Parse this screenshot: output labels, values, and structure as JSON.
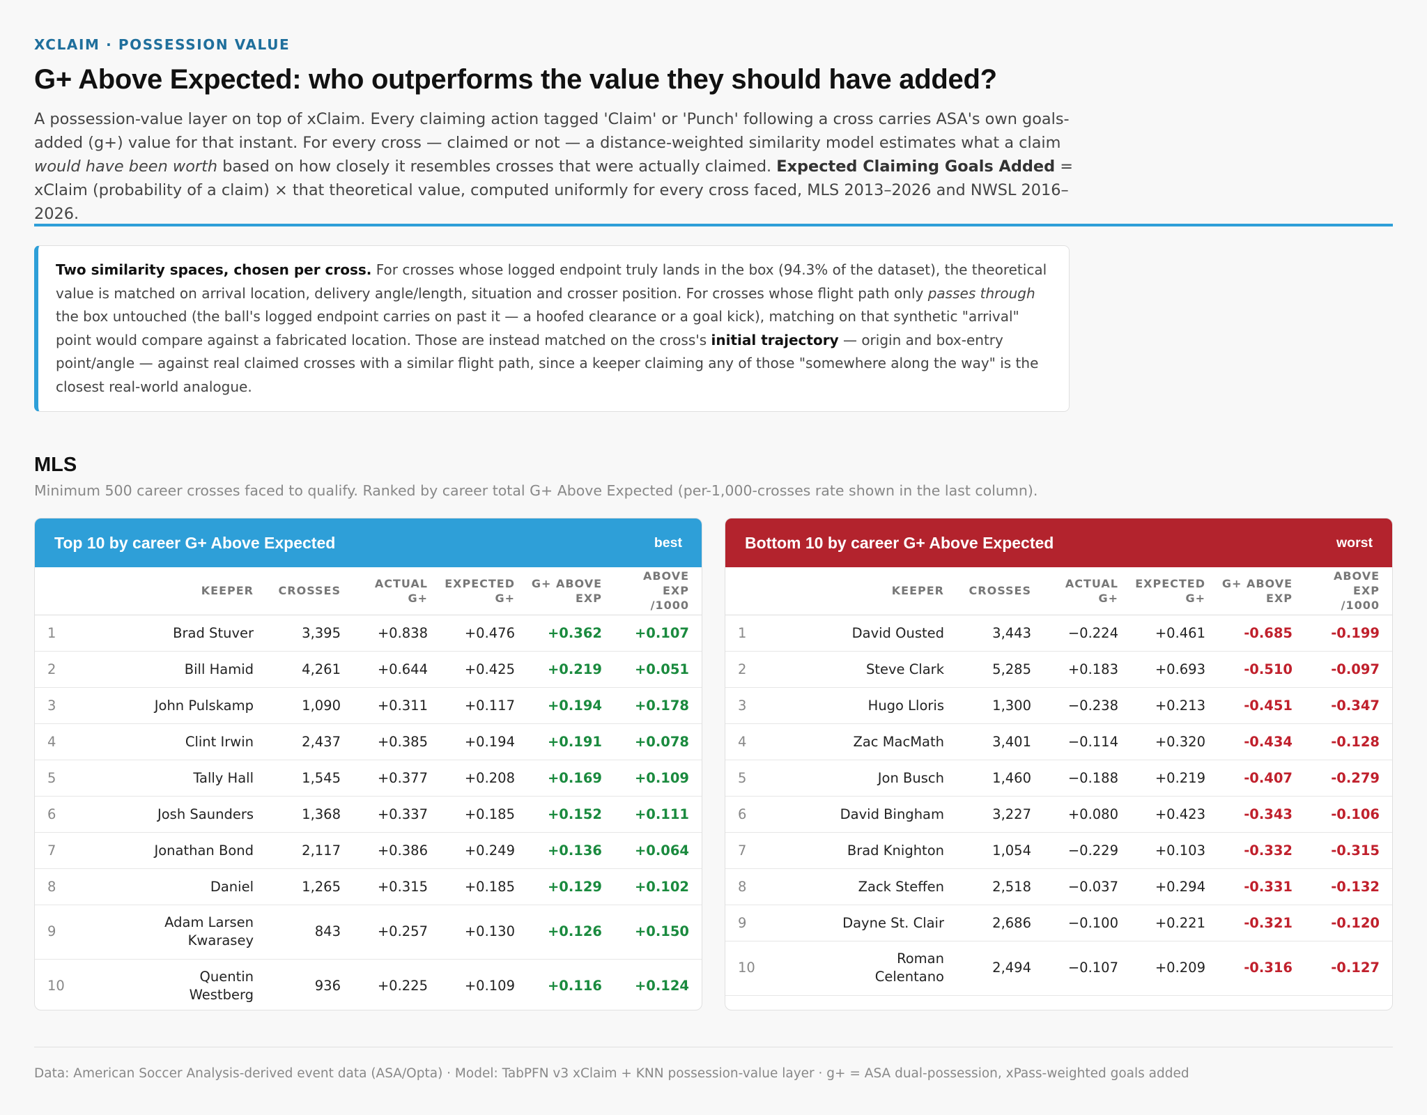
{
  "header": {
    "eyebrow": "XCLAIM · POSSESSION VALUE",
    "title": "G+ Above Expected: who outperforms the value they should have added?",
    "intro_p1": "A possession-value layer on top of xClaim. Every claiming action tagged 'Claim' or 'Punch' following a cross carries ASA's own goals-added (g+) value for that instant. For every cross — claimed or not — a distance-weighted similarity model estimates what a claim ",
    "intro_em": "would have been worth",
    "intro_p2": " based on how closely it resembles crosses that were actually claimed. ",
    "intro_bold": "Expected Claiming Goals Added",
    "intro_p3": " = xClaim (probability of a claim) × that theoretical value, computed uniformly for every cross faced, MLS 2013–2026 and NWSL 2016–2026."
  },
  "note": {
    "lead": "Two similarity spaces, chosen per cross.",
    "t1": " For crosses whose logged endpoint truly lands in the box (94.3% of the dataset), the theoretical value is matched on arrival location, delivery angle/length, situation and crosser position. For crosses whose flight path only ",
    "em": "passes through",
    "t2": " the box untouched (the ball's logged endpoint carries on past it — a hoofed clearance or a goal kick), matching on that synthetic \"arrival\" point would compare against a fabricated location. Those are instead matched on the cross's ",
    "bold": "initial trajectory",
    "t3": " — origin and box-entry point/angle — against real claimed crosses with a similar flight path, since a keeper claiming any of those \"somewhere along the way\" is the closest real-world analogue."
  },
  "section": {
    "title": "MLS",
    "subtitle": "Minimum 500 career crosses faced to qualify. Ranked by career total G+ Above Expected (per-1,000-crosses rate shown in the last column)."
  },
  "columns": {
    "keeper": "KEEPER",
    "crosses": "CROSSES",
    "actual_1": "ACTUAL",
    "actual_2": "G+",
    "expected_1": "EXPECTED",
    "expected_2": "G+",
    "above_1": "G+ ABOVE",
    "above_2": "EXP",
    "rate_1": "ABOVE EXP",
    "rate_2": "/1000"
  },
  "top": {
    "title": "Top 10 by career G+ Above Expected",
    "tag": "best",
    "accent": "#2e9fd8",
    "rows": [
      {
        "rank": "1",
        "k1": "Brad Stuver",
        "k2": "",
        "crosses": "3,395",
        "actual": "+0.838",
        "expected": "+0.476",
        "above": "+0.362",
        "rate": "+0.107"
      },
      {
        "rank": "2",
        "k1": "Bill Hamid",
        "k2": "",
        "crosses": "4,261",
        "actual": "+0.644",
        "expected": "+0.425",
        "above": "+0.219",
        "rate": "+0.051"
      },
      {
        "rank": "3",
        "k1": "John Pulskamp",
        "k2": "",
        "crosses": "1,090",
        "actual": "+0.311",
        "expected": "+0.117",
        "above": "+0.194",
        "rate": "+0.178"
      },
      {
        "rank": "4",
        "k1": "Clint Irwin",
        "k2": "",
        "crosses": "2,437",
        "actual": "+0.385",
        "expected": "+0.194",
        "above": "+0.191",
        "rate": "+0.078"
      },
      {
        "rank": "5",
        "k1": "Tally Hall",
        "k2": "",
        "crosses": "1,545",
        "actual": "+0.377",
        "expected": "+0.208",
        "above": "+0.169",
        "rate": "+0.109"
      },
      {
        "rank": "6",
        "k1": "Josh Saunders",
        "k2": "",
        "crosses": "1,368",
        "actual": "+0.337",
        "expected": "+0.185",
        "above": "+0.152",
        "rate": "+0.111"
      },
      {
        "rank": "7",
        "k1": "Jonathan Bond",
        "k2": "",
        "crosses": "2,117",
        "actual": "+0.386",
        "expected": "+0.249",
        "above": "+0.136",
        "rate": "+0.064"
      },
      {
        "rank": "8",
        "k1": "Daniel",
        "k2": "",
        "crosses": "1,265",
        "actual": "+0.315",
        "expected": "+0.185",
        "above": "+0.129",
        "rate": "+0.102"
      },
      {
        "rank": "9",
        "k1": "Adam Larsen",
        "k2": "Kwarasey",
        "crosses": "843",
        "actual": "+0.257",
        "expected": "+0.130",
        "above": "+0.126",
        "rate": "+0.150"
      },
      {
        "rank": "10",
        "k1": "Quentin",
        "k2": "Westberg",
        "crosses": "936",
        "actual": "+0.225",
        "expected": "+0.109",
        "above": "+0.116",
        "rate": "+0.124"
      }
    ]
  },
  "bottom": {
    "title": "Bottom 10 by career G+ Above Expected",
    "tag": "worst",
    "accent": "#b3232d",
    "rows": [
      {
        "rank": "1",
        "k1": "David Ousted",
        "k2": "",
        "crosses": "3,443",
        "actual": "−0.224",
        "expected": "+0.461",
        "above": "-0.685",
        "rate": "-0.199"
      },
      {
        "rank": "2",
        "k1": "Steve Clark",
        "k2": "",
        "crosses": "5,285",
        "actual": "+0.183",
        "expected": "+0.693",
        "above": "-0.510",
        "rate": "-0.097"
      },
      {
        "rank": "3",
        "k1": "Hugo Lloris",
        "k2": "",
        "crosses": "1,300",
        "actual": "−0.238",
        "expected": "+0.213",
        "above": "-0.451",
        "rate": "-0.347"
      },
      {
        "rank": "4",
        "k1": "Zac MacMath",
        "k2": "",
        "crosses": "3,401",
        "actual": "−0.114",
        "expected": "+0.320",
        "above": "-0.434",
        "rate": "-0.128"
      },
      {
        "rank": "5",
        "k1": "Jon Busch",
        "k2": "",
        "crosses": "1,460",
        "actual": "−0.188",
        "expected": "+0.219",
        "above": "-0.407",
        "rate": "-0.279"
      },
      {
        "rank": "6",
        "k1": "David Bingham",
        "k2": "",
        "crosses": "3,227",
        "actual": "+0.080",
        "expected": "+0.423",
        "above": "-0.343",
        "rate": "-0.106"
      },
      {
        "rank": "7",
        "k1": "Brad Knighton",
        "k2": "",
        "crosses": "1,054",
        "actual": "−0.229",
        "expected": "+0.103",
        "above": "-0.332",
        "rate": "-0.315"
      },
      {
        "rank": "8",
        "k1": "Zack Steffen",
        "k2": "",
        "crosses": "2,518",
        "actual": "−0.037",
        "expected": "+0.294",
        "above": "-0.331",
        "rate": "-0.132"
      },
      {
        "rank": "9",
        "k1": "Dayne St. Clair",
        "k2": "",
        "crosses": "2,686",
        "actual": "−0.100",
        "expected": "+0.221",
        "above": "-0.321",
        "rate": "-0.120"
      },
      {
        "rank": "10",
        "k1": "Roman",
        "k2": "Celentano",
        "crosses": "2,494",
        "actual": "−0.107",
        "expected": "+0.209",
        "above": "-0.316",
        "rate": "-0.127"
      }
    ]
  },
  "colors": {
    "positive": "#1a8a3e",
    "negative": "#c0202c",
    "rule": "#2e9fd8"
  },
  "footer": "Data: American Soccer Analysis-derived event data (ASA/Opta) · Model: TabPFN v3 xClaim + KNN possession-value layer · g+ = ASA dual-possession, xPass-weighted goals added"
}
